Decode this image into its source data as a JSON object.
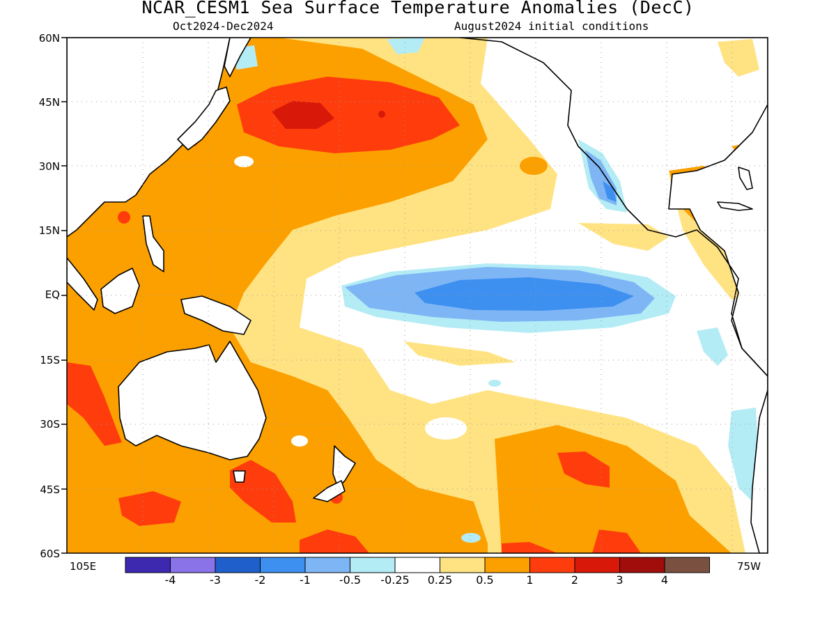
{
  "title": "NCAR_CESM1 Sea Surface Temperature Anomalies (DecC)",
  "subtitle_left": "Oct2024-Dec2024",
  "subtitle_right": "August2024 initial conditions",
  "lat_labels": [
    "60N",
    "45N",
    "30N",
    "15N",
    "EQ",
    "15S",
    "30S",
    "45S",
    "60S"
  ],
  "lon_labels": {
    "left": "105E",
    "right": "75W"
  },
  "colorbar": {
    "colors": [
      "#3d28b0",
      "#8a73e8",
      "#1f5fcc",
      "#3d8ff0",
      "#7eb6f5",
      "#b4ecf5",
      "#ffffff",
      "#ffe382",
      "#fca000",
      "#ff3c0c",
      "#d81808",
      "#a00d0a",
      "#7a5040"
    ],
    "labels": [
      "-4",
      "-3",
      "-2",
      "-1",
      "-0.5",
      "-0.25",
      "0.25",
      "0.5",
      "1",
      "2",
      "3",
      "4"
    ]
  }
}
